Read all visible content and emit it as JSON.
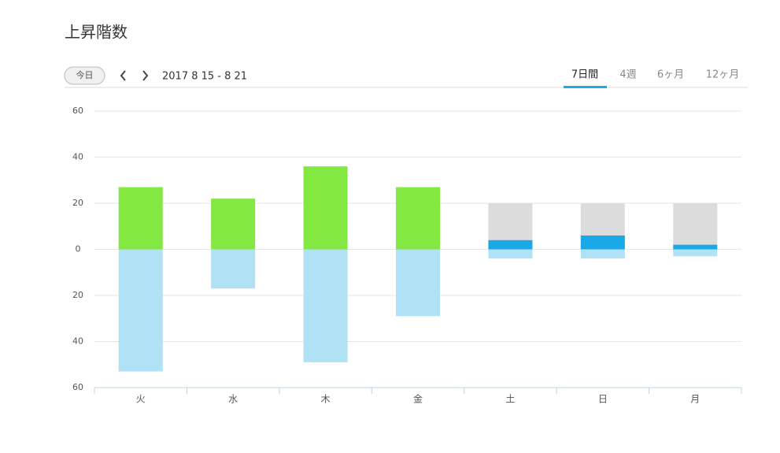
{
  "header": {
    "title": "上昇階数",
    "today_button": "今日",
    "date_range": "2017 8 15 - 8 21",
    "tabs": [
      "7日間",
      "4週",
      "6ヶ月",
      "12ヶ月"
    ],
    "active_tab": 0
  },
  "chart_data": {
    "type": "bar",
    "categories": [
      "火",
      "水",
      "木",
      "金",
      "土",
      "日",
      "月"
    ],
    "series": [
      {
        "color": "#dcdcdc",
        "values": [
          null,
          null,
          null,
          null,
          20,
          20,
          20
        ]
      },
      {
        "colors": [
          "#84e842",
          "#84e842",
          "#84e842",
          "#84e842",
          "#1ba8e6",
          "#1ba8e6",
          "#1ba8e6"
        ],
        "values": [
          27,
          22,
          36,
          27,
          4,
          6,
          2
        ]
      },
      {
        "color": "#b1e1f5",
        "values": [
          -53,
          -17,
          -49,
          -29,
          -4,
          -4,
          -3
        ]
      }
    ],
    "ylim": [
      -60,
      60
    ],
    "yticks": [
      {
        "value": -60,
        "label": "60"
      },
      {
        "value": -40,
        "label": "40"
      },
      {
        "value": -20,
        "label": "20"
      },
      0,
      20,
      40,
      60
    ],
    "grid": true
  }
}
